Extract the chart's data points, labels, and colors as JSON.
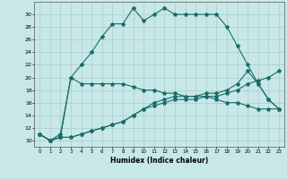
{
  "xlabel": "Humidex (Indice chaleur)",
  "bg_color": "#c8e8e8",
  "grid_color": "#a8cccc",
  "line_color": "#1a6b6b",
  "xlim": [
    -0.5,
    23.5
  ],
  "ylim": [
    9,
    32
  ],
  "xticks": [
    0,
    1,
    2,
    3,
    4,
    5,
    6,
    7,
    8,
    9,
    10,
    11,
    12,
    13,
    14,
    15,
    16,
    17,
    18,
    19,
    20,
    21,
    22,
    23
  ],
  "yticks": [
    10,
    12,
    14,
    16,
    18,
    20,
    22,
    24,
    26,
    28,
    30
  ],
  "line1_x": [
    0,
    1,
    2,
    3,
    4,
    5,
    6,
    7,
    8,
    9,
    10,
    11,
    12,
    13,
    14,
    15,
    16,
    17,
    18,
    19,
    20,
    21,
    22,
    23
  ],
  "line1_y": [
    11,
    10,
    11,
    20,
    22,
    24,
    26.5,
    28.5,
    28.5,
    31,
    29,
    30,
    31,
    30,
    30,
    30,
    30,
    30,
    28,
    25,
    22,
    19,
    16.5,
    15
  ],
  "line2_x": [
    0,
    1,
    2,
    3,
    4,
    5,
    6,
    7,
    8,
    9,
    10,
    11,
    12,
    13,
    14,
    15,
    16,
    17,
    18,
    19,
    20,
    21,
    22,
    23
  ],
  "line2_y": [
    11,
    10,
    10.5,
    20,
    19,
    19,
    19,
    19,
    19,
    18.5,
    18,
    18,
    17.5,
    17.5,
    17,
    17,
    17,
    16.5,
    16,
    16,
    15.5,
    15,
    15,
    15
  ],
  "line3_x": [
    0,
    1,
    2,
    3,
    4,
    5,
    6,
    7,
    8,
    9,
    10,
    11,
    12,
    13,
    14,
    15,
    16,
    17,
    18,
    19,
    20,
    21,
    22,
    23
  ],
  "line3_y": [
    11,
    10,
    10.5,
    10.5,
    11,
    11.5,
    12,
    12.5,
    13,
    14,
    15,
    16,
    16.5,
    17,
    17,
    17,
    17.5,
    17.5,
    18,
    19,
    21,
    19,
    16.5,
    15
  ],
  "line4_x": [
    0,
    1,
    2,
    3,
    4,
    5,
    6,
    7,
    8,
    9,
    10,
    11,
    12,
    13,
    14,
    15,
    16,
    17,
    18,
    19,
    20,
    21,
    22,
    23
  ],
  "line4_y": [
    11,
    10,
    10.5,
    10.5,
    11,
    11.5,
    12,
    12.5,
    13,
    14,
    15,
    15.5,
    16,
    16.5,
    16.5,
    16.5,
    17,
    17,
    17.5,
    18,
    19,
    19.5,
    20,
    21
  ]
}
